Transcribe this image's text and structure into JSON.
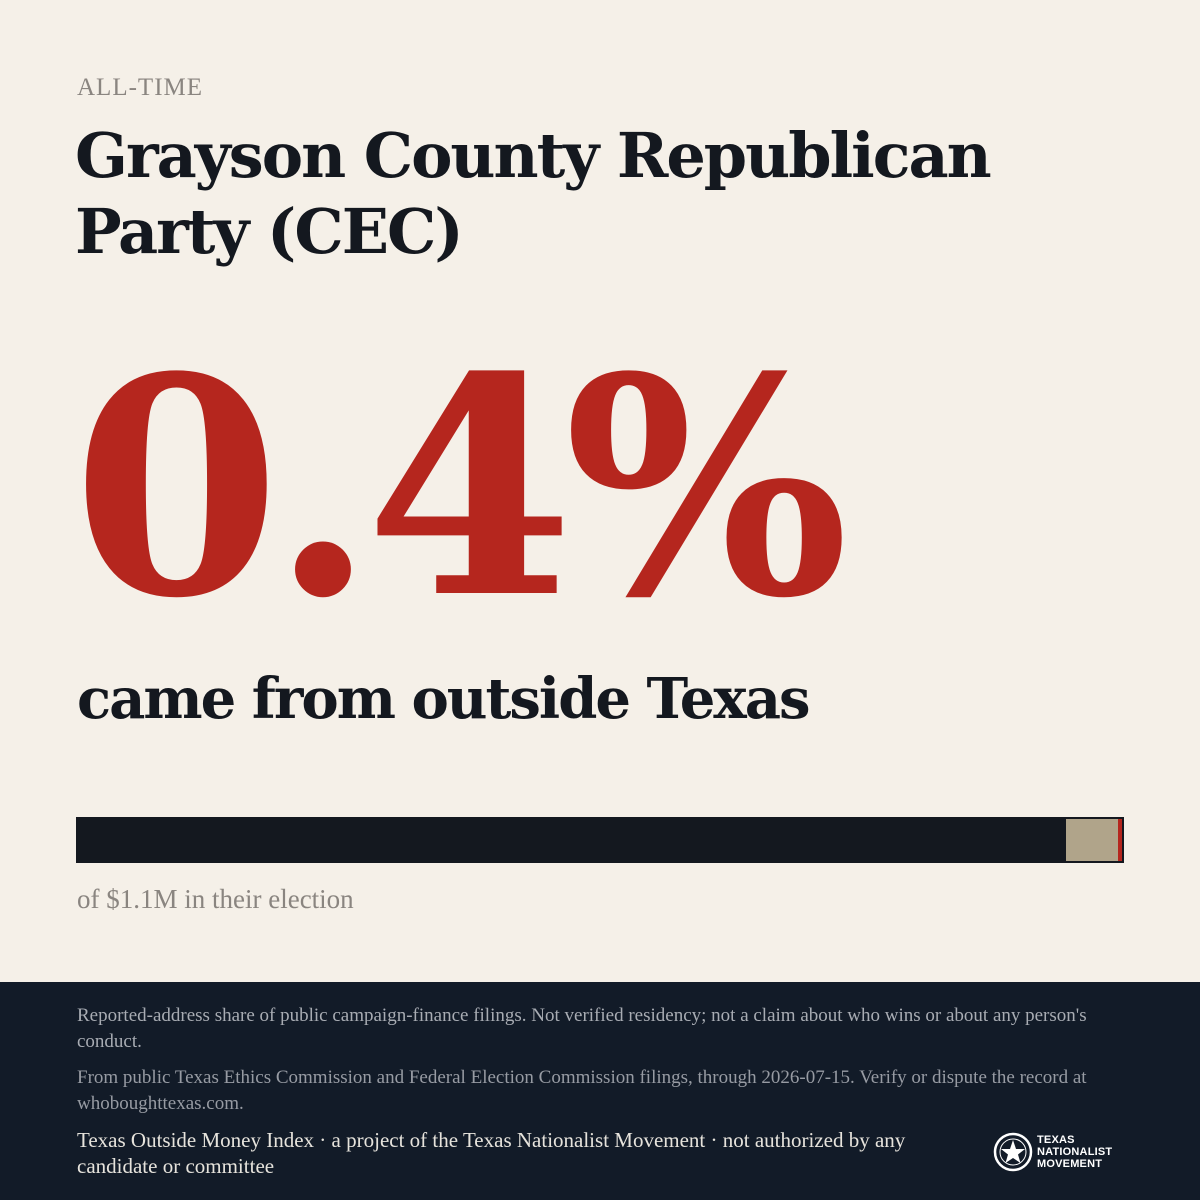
{
  "header": {
    "eyebrow": "ALL-TIME",
    "title": "Grayson County Republican Party (CEC)"
  },
  "stat": {
    "percent_label": "0.4%",
    "outside_share": 0.004,
    "subhead": "came from outside Texas",
    "caption": "of $1.1M in their election"
  },
  "colors": {
    "background": "#f5f0e8",
    "accent_red": "#b5261e",
    "ink": "#14181f",
    "bar_tan": "#b0a48a",
    "footer_bg": "#121b28"
  },
  "footer": {
    "disclaimer": "Reported-address share of public campaign-finance filings. Not verified residency; not a claim about who wins or about any person's conduct.",
    "source": "From public Texas Ethics Commission and Federal Election Commission filings, through 2026-07-15. Verify or dispute the record at whoboughttexas.com.",
    "credit": "Texas Outside Money Index · a project of the Texas Nationalist Movement · not authorized by any candidate or committee",
    "logo": {
      "icon": "star-seal-icon",
      "line1": "TEXAS",
      "line2": "NATIONALIST",
      "line3": "MOVEMENT"
    }
  }
}
